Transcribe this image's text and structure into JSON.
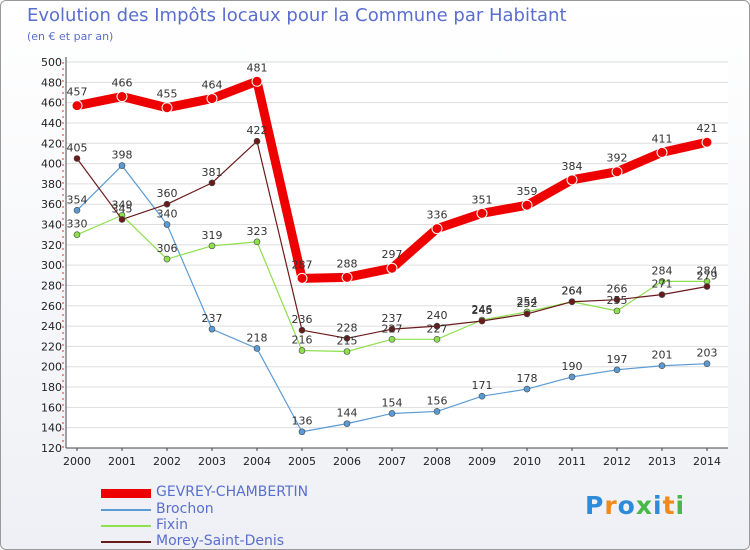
{
  "header": {
    "title": "Evolution des Impôts locaux pour la Commune par Habitant",
    "subtitle": "(en € et par an)"
  },
  "chart_data": {
    "type": "line",
    "title": "Evolution des Impôts locaux pour la Commune par Habitant",
    "subtitle": "(en € et par an)",
    "xlabel": "",
    "ylabel": "",
    "ylim": [
      120,
      500
    ],
    "ytick_step": 20,
    "grid": "horizontal",
    "categories": [
      "2000",
      "2001",
      "2002",
      "2003",
      "2004",
      "2005",
      "2006",
      "2007",
      "2008",
      "2009",
      "2010",
      "2011",
      "2012",
      "2013",
      "2014"
    ],
    "series": [
      {
        "name": "GEVREY-CHAMBERTIN",
        "color": "#ee0000",
        "width": "thick",
        "labels": "above",
        "values": [
          457,
          466,
          455,
          464,
          481,
          287,
          288,
          297,
          336,
          351,
          359,
          384,
          392,
          411,
          421
        ]
      },
      {
        "name": "Brochon",
        "color": "#5b9bd5",
        "width": "thin",
        "labels": "above",
        "values": [
          354,
          398,
          340,
          237,
          218,
          136,
          144,
          154,
          156,
          171,
          178,
          190,
          197,
          201,
          203
        ]
      },
      {
        "name": "Fixin",
        "color": "#8ee04e",
        "width": "thin",
        "labels": "above",
        "values": [
          330,
          349,
          306,
          319,
          323,
          216,
          215,
          227,
          227,
          246,
          254,
          264,
          255,
          284,
          284
        ]
      },
      {
        "name": "Morey-Saint-Denis",
        "color": "#6b1a1a",
        "width": "thin",
        "labels": "above",
        "values": [
          405,
          345,
          360,
          381,
          422,
          236,
          228,
          237,
          240,
          245,
          252,
          264,
          266,
          271,
          279
        ]
      }
    ]
  },
  "legend": {
    "items": [
      {
        "label": "GEVREY-CHAMBERTIN",
        "color": "#ee0000"
      },
      {
        "label": "Brochon",
        "color": "#5b9bd5"
      },
      {
        "label": "Fixin",
        "color": "#8ee04e"
      },
      {
        "label": "Morey-Saint-Denis",
        "color": "#6b1a1a"
      }
    ]
  },
  "branding": {
    "logo_text": "Proxiti",
    "logo_colors": [
      "#2e8bd8",
      "#f08a1c",
      "#2e8bd8",
      "#49b848",
      "#2e8bd8",
      "#f08a1c",
      "#49b848"
    ]
  }
}
